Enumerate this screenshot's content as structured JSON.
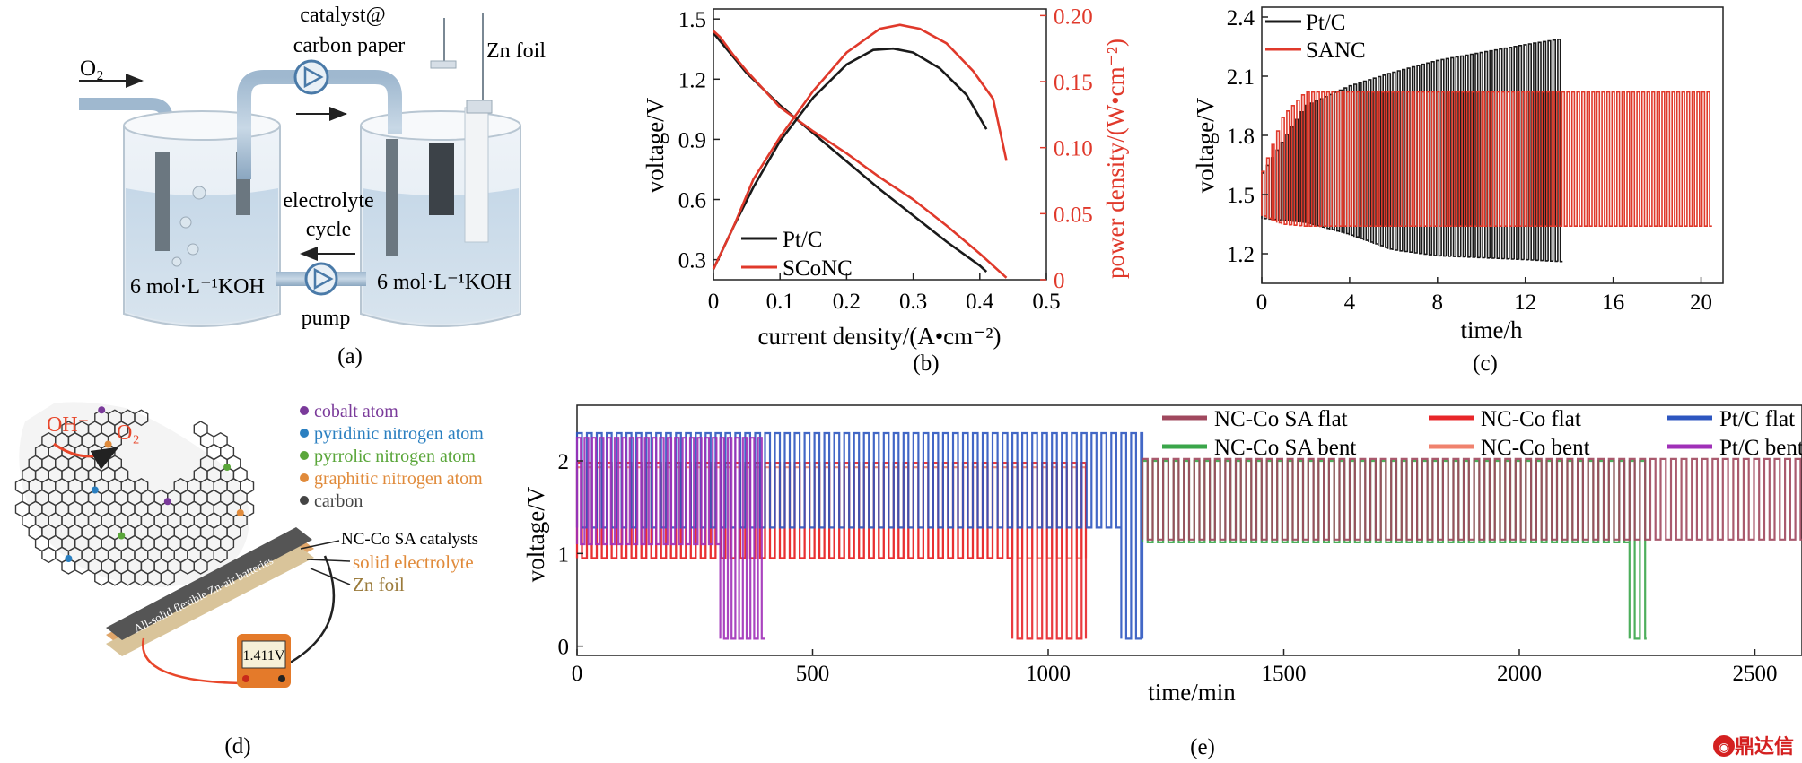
{
  "figure": {
    "watermark": "鼎达信"
  },
  "panel_a": {
    "caption": "(a)",
    "labels": {
      "o2": "O₂",
      "catalyst_line1": "catalyst@",
      "catalyst_line2": "carbon paper",
      "zn_foil": "Zn foil",
      "electrolyte_line1": "electrolyte",
      "electrolyte_line2": "cycle",
      "koh_left": "6 mol·L⁻¹KOH",
      "koh_right": "6 mol·L⁻¹KOH",
      "pump": "pump"
    }
  },
  "panel_d": {
    "caption": "(d)",
    "legend": [
      {
        "label": "cobalt atom",
        "color": "#7a3a9a"
      },
      {
        "label": "pyridinic nitrogen atom",
        "color": "#2a7fc0"
      },
      {
        "label": "pyrrolic nitrogen atom",
        "color": "#5aa63a"
      },
      {
        "label": "graphitic nitrogen atom",
        "color": "#e08a3a"
      },
      {
        "label": "carbon",
        "color": "#444444"
      }
    ],
    "labels": {
      "oh": "OH⁻",
      "o2": "O₂",
      "catalyst": "NC-Co SA catalysts",
      "electrolyte": "solid electrolyte",
      "zn": "Zn foil",
      "battery": "All-solid flexible Zn-air batteries",
      "meter": "1.411V"
    },
    "colors": {
      "catalyst": "#333333",
      "electrolyte": "#e08a3a",
      "zn": "#9a7a3a"
    }
  },
  "chart_data": [
    {
      "id": "b",
      "caption": "(b)",
      "type": "line",
      "xlabel": "current density/(A•cm⁻²)",
      "ylabel": "voltage/V",
      "y2label": "power density/(W•cm⁻²)",
      "xlim": [
        0,
        0.5
      ],
      "ylim": [
        0.2,
        1.55
      ],
      "y2lim": [
        0,
        0.205
      ],
      "xticks": [
        "0",
        "0.1",
        "0.2",
        "0.3",
        "0.4",
        "0.5"
      ],
      "yticks": [
        "0.3",
        "0.6",
        "0.9",
        "1.2",
        "1.5"
      ],
      "y2ticks": [
        "0",
        "0.05",
        "0.10",
        "0.15",
        "0.20"
      ],
      "legend_position": "bottom-left",
      "series": [
        {
          "name": "Pt/C",
          "axis": "left",
          "color": "#1a1a1a",
          "x": [
            0,
            0.01,
            0.03,
            0.05,
            0.1,
            0.15,
            0.2,
            0.25,
            0.3,
            0.35,
            0.4,
            0.41
          ],
          "y": [
            1.43,
            1.39,
            1.31,
            1.23,
            1.07,
            0.93,
            0.79,
            0.65,
            0.52,
            0.39,
            0.27,
            0.24
          ]
        },
        {
          "name": "SCoNC",
          "axis": "left",
          "color": "#e0392b",
          "x": [
            0,
            0.01,
            0.03,
            0.05,
            0.1,
            0.15,
            0.2,
            0.25,
            0.3,
            0.35,
            0.4,
            0.44
          ],
          "y": [
            1.44,
            1.41,
            1.32,
            1.24,
            1.06,
            0.94,
            0.83,
            0.71,
            0.6,
            0.47,
            0.33,
            0.21
          ]
        },
        {
          "name": "Pt/C",
          "axis": "right",
          "color": "#1a1a1a",
          "x": [
            0,
            0.03,
            0.06,
            0.1,
            0.15,
            0.2,
            0.24,
            0.27,
            0.3,
            0.34,
            0.38,
            0.41
          ],
          "y": [
            0.008,
            0.04,
            0.07,
            0.105,
            0.138,
            0.163,
            0.174,
            0.175,
            0.172,
            0.16,
            0.14,
            0.114
          ]
        },
        {
          "name": "SCoNC",
          "axis": "right",
          "color": "#e0392b",
          "x": [
            0,
            0.03,
            0.06,
            0.1,
            0.15,
            0.2,
            0.25,
            0.28,
            0.31,
            0.35,
            0.39,
            0.42,
            0.44
          ],
          "y": [
            0.008,
            0.04,
            0.076,
            0.108,
            0.143,
            0.172,
            0.19,
            0.193,
            0.19,
            0.179,
            0.158,
            0.137,
            0.09
          ]
        }
      ]
    },
    {
      "id": "c",
      "caption": "(c)",
      "type": "line",
      "xlabel": "time/h",
      "ylabel": "voltage/V",
      "xlim": [
        0,
        21
      ],
      "ylim": [
        1.05,
        2.45
      ],
      "xticks": [
        "0",
        "4",
        "8",
        "12",
        "16",
        "20"
      ],
      "yticks": [
        "1.2",
        "1.5",
        "1.8",
        "2.1",
        "2.4"
      ],
      "legend_position": "top-left",
      "series": [
        {
          "name": "Pt/C",
          "color": "#1a1a1a",
          "t_end": 13.7,
          "cycles": 62,
          "charge": {
            "t": [
              0,
              2,
              4,
              6,
              8,
              10,
              12,
              13.7
            ],
            "v": [
              1.6,
              1.95,
              2.05,
              2.12,
              2.18,
              2.22,
              2.26,
              2.29
            ]
          },
          "discharge": {
            "t": [
              0,
              2,
              4,
              6,
              8,
              10,
              12,
              13.7
            ],
            "v": [
              1.38,
              1.36,
              1.3,
              1.22,
              1.19,
              1.18,
              1.17,
              1.16
            ]
          }
        },
        {
          "name": "SANC",
          "color": "#e0392b",
          "t_end": 20.5,
          "cycles": 90,
          "charge": {
            "t": [
              0,
              1,
              2,
              20.5
            ],
            "v": [
              1.6,
              1.9,
              2.02,
              2.02
            ]
          },
          "discharge": {
            "t": [
              0,
              1,
              2,
              20.5
            ],
            "v": [
              1.4,
              1.35,
              1.34,
              1.34
            ]
          }
        }
      ]
    },
    {
      "id": "e",
      "caption": "(e)",
      "type": "line",
      "xlabel": "time/min",
      "ylabel": "voltage/V",
      "xlim": [
        0,
        2600
      ],
      "ylim": [
        -0.1,
        2.6
      ],
      "xticks": [
        "0",
        "500",
        "1000",
        "1500",
        "2000",
        "2500"
      ],
      "yticks": [
        "0",
        "1",
        "2"
      ],
      "legend_position": "top-right",
      "series": [
        {
          "name": "NC-Co SA flat",
          "color": "#a0485e",
          "t_start": 1200,
          "t_end": 2600,
          "charge": 2.02,
          "discharge": 1.15,
          "period": 22
        },
        {
          "name": "NC-Co SA bent",
          "color": "#3aa64a",
          "t_start": 1200,
          "t_end": 2270,
          "charge": 2.0,
          "discharge": 1.12,
          "period": 22,
          "drop_start": 2220
        },
        {
          "name": "NC-Co flat",
          "color": "#e8262a",
          "t_start": 0,
          "t_end": 1080,
          "charge": 1.98,
          "discharge": 0.95,
          "period": 21,
          "drop_start": 910
        },
        {
          "name": "NC-Co bent",
          "color": "#f0826e",
          "t_start": 0,
          "t_end": 1080,
          "charge": 1.93,
          "discharge": 0.95,
          "period": 21
        },
        {
          "name": "Pt/C flat",
          "color": "#2d56c0",
          "t_start": 0,
          "t_end": 1200,
          "charge": 2.3,
          "discharge": 1.28,
          "period": 21,
          "drop_start": 1150
        },
        {
          "name": "Pt/C bent",
          "color": "#a030b8",
          "t_start": 0,
          "t_end": 400,
          "charge": 2.25,
          "discharge": 1.1,
          "period": 16,
          "drop_start": 290
        }
      ]
    }
  ]
}
